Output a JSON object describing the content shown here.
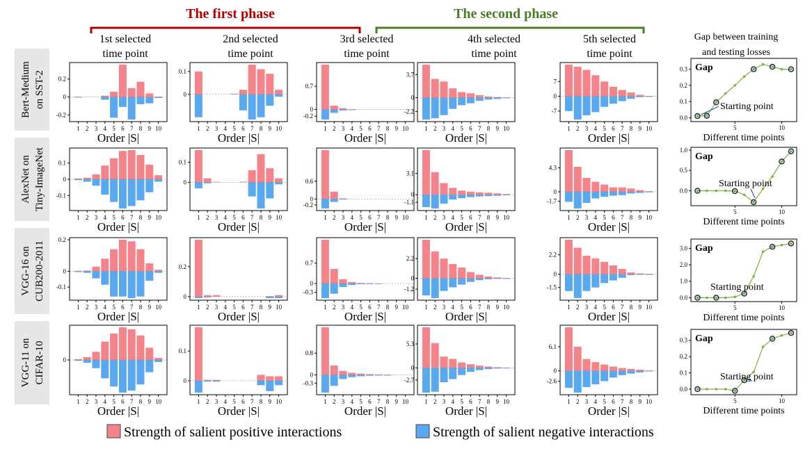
{
  "phases": {
    "first": {
      "label": "The first phase",
      "color": "#b00000"
    },
    "second": {
      "label": "The second phase",
      "color": "#4a7c2a"
    }
  },
  "column_titles": [
    [
      "1st selected",
      "time point"
    ],
    [
      "2nd selected",
      "time point"
    ],
    [
      "3rd selected",
      "time point"
    ],
    [
      "4th selected",
      "time point"
    ],
    [
      "5th selected",
      "time point"
    ]
  ],
  "gap_title": [
    "Gap between training",
    "and testing losses"
  ],
  "row_labels": [
    [
      "Bert-Medium",
      "on SST-2"
    ],
    [
      "AlexNet on",
      "Tiny-ImageNet"
    ],
    [
      "VGG-16 on",
      "CUB200-2011"
    ],
    [
      "VGG-11 on",
      "CIFAR-10"
    ]
  ],
  "x_axis_label": "Order |S|",
  "x_ticks": [
    "1",
    "2",
    "3",
    "4",
    "5",
    "6",
    "7",
    "8",
    "9",
    "10"
  ],
  "gap_panel": {
    "title_word": "Gap",
    "xlabel": "Different time points",
    "annotation": "Starting point",
    "x_ticks": [
      5,
      10
    ]
  },
  "legend": {
    "positive": {
      "label": "Strength of salient positive interactions",
      "color": "#f5838a"
    },
    "negative": {
      "label": "Strength of salient negative interactions",
      "color": "#5aa8f0"
    }
  },
  "chart_data": {
    "type": "bar",
    "panels": [
      [
        {
          "ticks": [
            0.2,
            0,
            -0.2
          ],
          "pos": [
            0.003,
            0,
            0,
            0.015,
            0.06,
            0.36,
            0.1,
            0.17,
            0.04,
            0.005
          ],
          "neg": [
            -0.003,
            0,
            0,
            -0.03,
            -0.23,
            -0.11,
            -0.25,
            -0.08,
            -0.07,
            -0.01
          ]
        },
        {
          "ticks": [
            0.1,
            0
          ],
          "pos": [
            0.1,
            0,
            0,
            0,
            0.003,
            0.02,
            0.13,
            0.11,
            0.09,
            0.02
          ],
          "neg": [
            -0.1,
            0,
            0,
            0,
            0,
            -0.07,
            -0.11,
            -0.1,
            -0.05,
            -0.01
          ]
        },
        {
          "ticks": [
            0.7,
            0,
            -0.2
          ],
          "pos": [
            1.35,
            0.12,
            0.04,
            0.01,
            0,
            0,
            0,
            0,
            0,
            0
          ],
          "neg": [
            -0.3,
            -0.1,
            -0.03,
            -0.01,
            0,
            0,
            0,
            0,
            0,
            0
          ]
        },
        {
          "ticks": [
            3.7,
            0,
            -2.2
          ],
          "pos": [
            5.3,
            3.0,
            2.6,
            1.5,
            0.9,
            0.7,
            0.4,
            0.2,
            0.1,
            0.05
          ],
          "neg": [
            -3.5,
            -3.3,
            -2.8,
            -1.8,
            -1.2,
            -0.9,
            -0.5,
            -0.3,
            -0.2,
            -0.05
          ]
        },
        {
          "ticks": [
            7,
            0,
            -7
          ],
          "pos": [
            15,
            14,
            12.5,
            10,
            7,
            4.5,
            3,
            1.8,
            0.7,
            0.2
          ],
          "neg": [
            -7,
            -11,
            -9,
            -7.5,
            -5,
            -3.5,
            -2.3,
            -1.2,
            -0.4,
            -0.1
          ]
        }
      ],
      [
        {
          "ticks": [
            0.1,
            0,
            -0.1
          ],
          "pos": [
            0.005,
            0.01,
            0.03,
            0.085,
            0.13,
            0.175,
            0.18,
            0.15,
            0.09,
            0.025
          ],
          "neg": [
            -0.005,
            -0.015,
            -0.04,
            -0.095,
            -0.14,
            -0.18,
            -0.165,
            -0.13,
            -0.08,
            -0.015
          ]
        },
        {
          "ticks": [
            0.1,
            0
          ],
          "pos": [
            0.16,
            0.02,
            0.003,
            0,
            0,
            0.003,
            0.06,
            0.14,
            0.07,
            0.02
          ],
          "neg": [
            -0.03,
            -0.005,
            0,
            0,
            0,
            0,
            -0.07,
            -0.13,
            -0.08,
            -0.01
          ]
        },
        {
          "ticks": [
            0.6,
            0,
            -0.2
          ],
          "pos": [
            1.65,
            0.25,
            0.02,
            0,
            0,
            0,
            0,
            0,
            0,
            0
          ],
          "neg": [
            -0.32,
            -0.1,
            -0.02,
            0,
            0,
            0,
            0,
            0,
            0,
            0
          ]
        },
        {
          "ticks": [
            3.1,
            0,
            -1.1
          ],
          "pos": [
            6.5,
            3.3,
            1.7,
            1.0,
            0.6,
            0.45,
            0.35,
            0.3,
            0.2,
            0.1
          ],
          "neg": [
            -1.8,
            -2.0,
            -1.3,
            -0.7,
            -0.5,
            -0.35,
            -0.25,
            -0.2,
            -0.15,
            -0.05
          ]
        },
        {
          "ticks": [
            4.3,
            0,
            -1.7
          ],
          "pos": [
            7.5,
            4.5,
            2.5,
            1.8,
            1.3,
            0.8,
            0.8,
            0.6,
            0.3,
            0.1
          ],
          "neg": [
            -1.8,
            -3.0,
            -2.0,
            -1.2,
            -0.9,
            -0.7,
            -0.6,
            -0.3,
            -0.2,
            -0.05
          ]
        }
      ],
      [
        {
          "ticks": [
            0.2,
            0,
            -0.1
          ],
          "pos": [
            0.003,
            0.005,
            0.03,
            0.08,
            0.14,
            0.2,
            0.19,
            0.14,
            0.05,
            0.01
          ],
          "neg": [
            -0.005,
            -0.01,
            -0.045,
            -0.085,
            -0.16,
            -0.16,
            -0.17,
            -0.16,
            -0.06,
            -0.01
          ]
        },
        {
          "ticks": [
            0.2,
            0
          ],
          "pos": [
            0.38,
            0.01,
            0.01,
            0,
            0,
            0,
            0,
            0,
            0.003,
            0.01
          ],
          "neg": [
            -0.01,
            -0.005,
            0,
            0,
            0,
            0,
            0,
            0,
            -0.01,
            -0.01
          ]
        },
        {
          "ticks": [
            0.7,
            0,
            -0.3
          ],
          "pos": [
            1.5,
            0.5,
            0.15,
            0.05,
            0.02,
            0.01,
            0,
            0,
            0,
            0
          ],
          "neg": [
            -0.5,
            -0.35,
            -0.12,
            -0.05,
            -0.02,
            -0.01,
            -0.005,
            0,
            0,
            0
          ]
        },
        {
          "ticks": [
            2.2,
            0,
            -1.2
          ],
          "pos": [
            4.3,
            3.0,
            2.2,
            1.6,
            1.2,
            0.7,
            0.4,
            0.2,
            0.1,
            0.05
          ],
          "neg": [
            -1.9,
            -2.2,
            -1.4,
            -1.0,
            -0.7,
            -0.4,
            -0.2,
            -0.1,
            -0.05,
            -0.02
          ]
        },
        {
          "ticks": [
            2.2,
            0,
            -1.5
          ],
          "pos": [
            3.9,
            3.0,
            2.1,
            1.8,
            1.4,
            1.0,
            0.6,
            0.2,
            0.1,
            0.05
          ],
          "neg": [
            -1.9,
            -2.7,
            -1.9,
            -1.5,
            -1.0,
            -0.7,
            -0.4,
            -0.1,
            -0.05,
            -0.02
          ]
        }
      ],
      [
        {
          "ticks": [
            0.1,
            0
          ],
          "pos": [
            0.002,
            0.007,
            0.02,
            0.045,
            0.065,
            0.08,
            0.075,
            0.06,
            0.03,
            0.005
          ],
          "neg": [
            -0.002,
            -0.007,
            -0.02,
            -0.045,
            -0.065,
            -0.08,
            -0.075,
            -0.06,
            -0.03,
            -0.005
          ]
        },
        {
          "ticks": [
            0.1,
            0
          ],
          "pos": [
            0.18,
            0.003,
            0.003,
            0,
            0,
            0,
            0,
            0.02,
            0.015,
            0.015
          ],
          "neg": [
            -0.04,
            -0.003,
            -0.003,
            0,
            0,
            0,
            0,
            -0.015,
            -0.035,
            -0.015
          ]
        },
        {
          "ticks": [
            0.8,
            0,
            -0.3
          ],
          "pos": [
            1.75,
            0.35,
            0.15,
            0.08,
            0.05,
            0.03,
            0.02,
            0.01,
            0,
            0
          ],
          "neg": [
            -0.65,
            -0.4,
            -0.15,
            -0.08,
            -0.05,
            -0.03,
            -0.02,
            -0.01,
            0,
            0
          ]
        },
        {
          "ticks": [
            5.3,
            0,
            -2.7
          ],
          "pos": [
            9.0,
            5.5,
            2.5,
            2.0,
            1.2,
            0.8,
            0.5,
            0.3,
            0.15,
            0.05
          ],
          "neg": [
            -5.5,
            -5.3,
            -3.2,
            -2.5,
            -1.6,
            -0.9,
            -0.5,
            -0.3,
            -0.15,
            -0.05
          ]
        },
        {
          "ticks": [
            6.1,
            0,
            -2.6
          ],
          "pos": [
            11,
            6.1,
            3,
            2.2,
            1.6,
            1.1,
            0.7,
            0.5,
            0.3,
            0.1
          ],
          "neg": [
            -4.3,
            -5.5,
            -4.1,
            -3.4,
            -2.6,
            -1.7,
            -1.1,
            -0.7,
            -0.4,
            -0.1
          ]
        }
      ]
    ],
    "gap_series": [
      {
        "ticks": [
          0.3,
          0.2,
          0.1,
          0.0
        ],
        "ymax": 0.35,
        "x": [
          1,
          2,
          3,
          4,
          5,
          6,
          7,
          8,
          9,
          10,
          11
        ],
        "y": [
          0.01,
          0.012,
          0.095,
          0.15,
          0.2,
          0.255,
          0.3,
          0.33,
          0.315,
          0.3,
          0.3
        ],
        "circled": [
          1,
          2,
          3,
          7,
          9,
          11
        ],
        "start_index": 1
      },
      {
        "ticks": [
          1.0,
          0.5,
          0.0
        ],
        "ymax": 1.0,
        "x": [
          1,
          2,
          3,
          4,
          5,
          6,
          7,
          8,
          9,
          10,
          11
        ],
        "y": [
          0,
          0,
          0,
          0,
          -0.01,
          -0.1,
          -0.28,
          0.05,
          0.35,
          0.72,
          0.97
        ],
        "circled": [
          1,
          5,
          7,
          10,
          11
        ],
        "start_index": 7
      },
      {
        "ticks": [
          3,
          2,
          1,
          0
        ],
        "ymax": 3.4,
        "x": [
          1,
          2,
          3,
          4,
          5,
          6,
          7,
          8,
          9,
          10,
          11
        ],
        "y": [
          0,
          0,
          0,
          0,
          0.05,
          0.25,
          1.3,
          2.8,
          3.1,
          3.2,
          3.3
        ],
        "circled": [
          1,
          3,
          6,
          9,
          11
        ],
        "start_index": 6
      },
      {
        "ticks": [
          0.3,
          0.2,
          0.1,
          0.0
        ],
        "ymax": 0.35,
        "x": [
          1,
          2,
          3,
          4,
          5,
          6,
          7,
          8,
          9,
          10,
          11
        ],
        "y": [
          0,
          0,
          0,
          0,
          -0.01,
          0.055,
          0.105,
          0.26,
          0.31,
          0.33,
          0.345
        ],
        "circled": [
          1,
          5,
          6,
          9,
          11
        ],
        "start_index": 6
      }
    ]
  }
}
